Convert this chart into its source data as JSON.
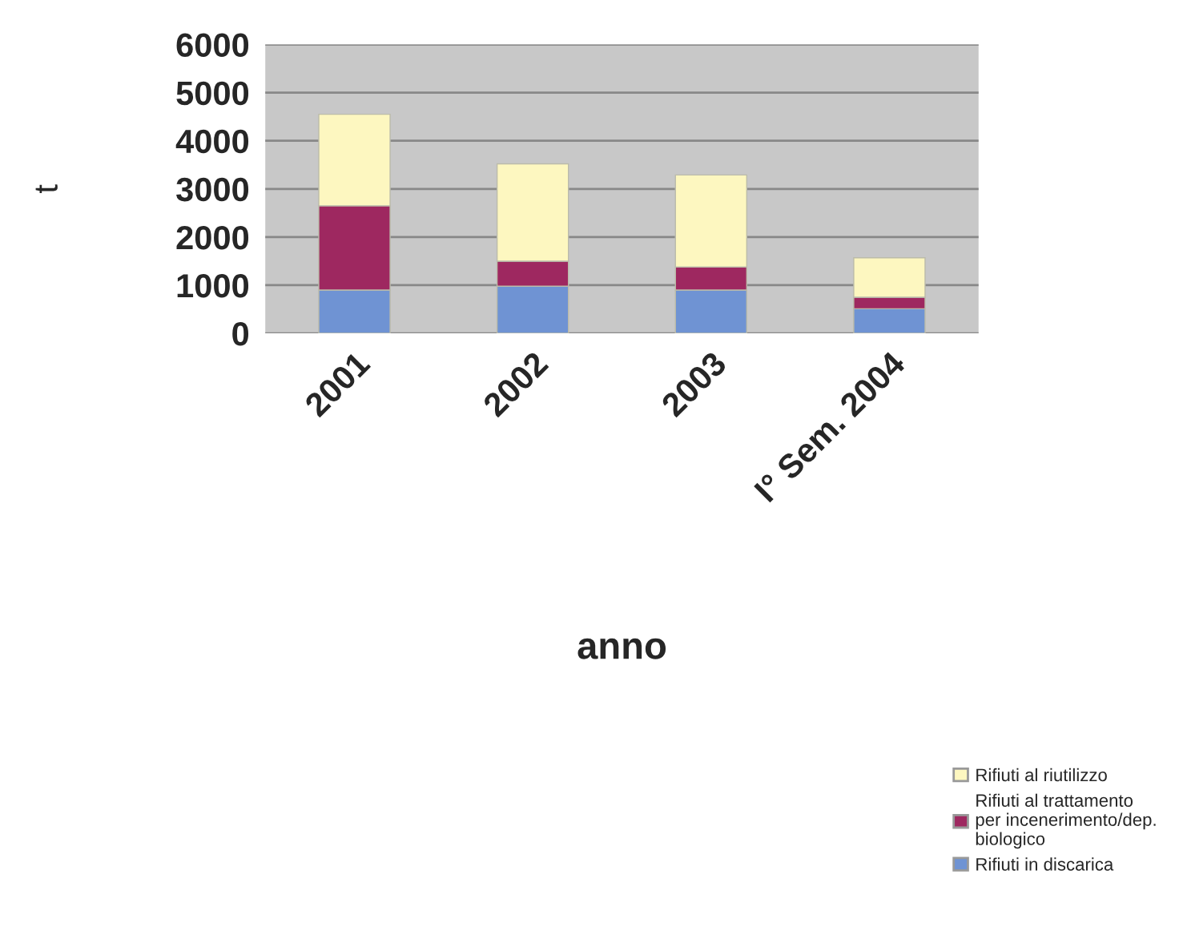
{
  "chart_data": {
    "type": "bar",
    "stacked": true,
    "xlabel": "anno",
    "ylabel": "t",
    "categories": [
      "2001",
      "2002",
      "2003",
      "I° Sem. 2004"
    ],
    "series": [
      {
        "name": "Rifiuti in discarica",
        "color": "#6f93d3",
        "values": [
          900,
          980,
          900,
          510
        ]
      },
      {
        "name": "Rifiuti al trattamento per incenerimento/dep. biologico",
        "color": "#9e2860",
        "values": [
          1750,
          520,
          480,
          240
        ]
      },
      {
        "name": "Rifiuti al riutilizzo",
        "color": "#fdf7c0",
        "values": [
          1900,
          2020,
          1910,
          820
        ]
      }
    ],
    "ylim": [
      0,
      6000
    ],
    "yticks": [
      0,
      1000,
      2000,
      3000,
      4000,
      5000,
      6000
    ],
    "grid": "y",
    "legend": "bottom right"
  }
}
